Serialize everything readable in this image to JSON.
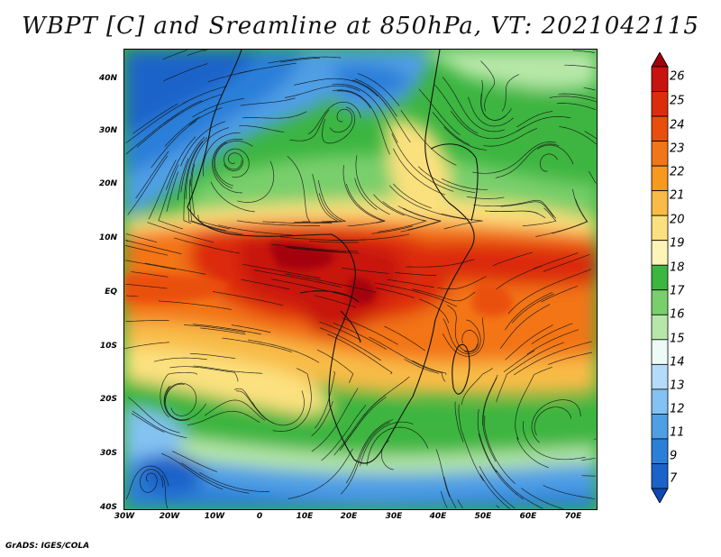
{
  "map": {
    "title": "WBPT [C] and Sreamline at 850hPa, VT: 2021042115",
    "variable": "Wet-bulb potential temperature",
    "units": "C",
    "level": "850hPa",
    "valid_time": "2021042115",
    "lat_labels": [
      "40N",
      "30N",
      "20N",
      "10N",
      "EQ",
      "10S",
      "20S",
      "30S",
      "40S"
    ],
    "lon_labels": [
      "30W",
      "20W",
      "10W",
      "0",
      "10E",
      "20E",
      "30E",
      "40E",
      "50E",
      "60E",
      "70E"
    ],
    "extent": {
      "lon_min": -30,
      "lon_max": 75,
      "lat_min": -40,
      "lat_max": 45
    },
    "credit": "GrADS: IGES/COLA"
  },
  "colorbar": {
    "levels": [
      "26",
      "25",
      "24",
      "23",
      "22",
      "21",
      "20",
      "19",
      "18",
      "17",
      "16",
      "15",
      "14",
      "13",
      "12",
      "11",
      "9",
      "7"
    ],
    "colors": [
      "#a0000d",
      "#c8140e",
      "#dc2c0c",
      "#ea4e0c",
      "#f37519",
      "#f7981f",
      "#f8bb46",
      "#fbe17e",
      "#fdf5b7",
      "#3cb541",
      "#79cf6c",
      "#b7e7a8",
      "#ecfbf6",
      "#b4dbf9",
      "#83c2f2",
      "#4f9fe5",
      "#2b7fd9",
      "#1b63c9",
      "#0d47b8"
    ]
  }
}
